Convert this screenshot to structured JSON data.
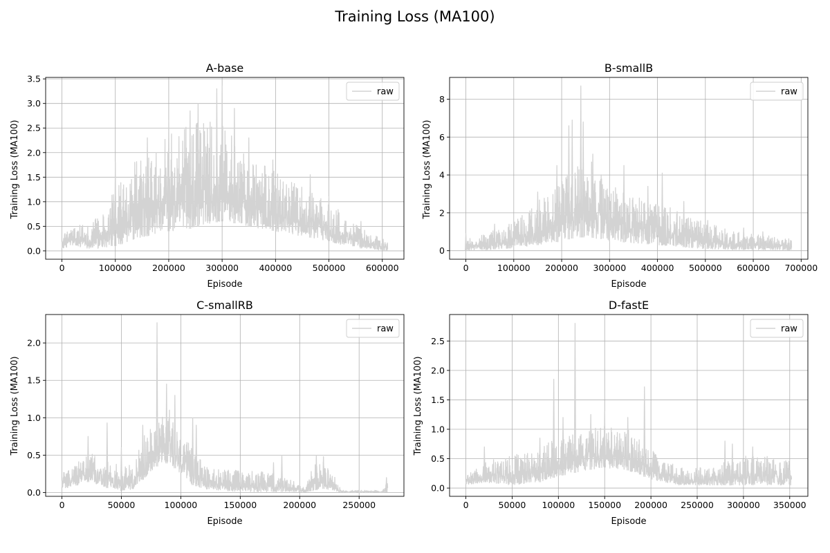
{
  "figure": {
    "title": "Training Loss (MA100)"
  },
  "style": {
    "raw_color": "#d3d3d3",
    "grid_color": "#b0b0b0",
    "axes_color": "#000000"
  },
  "chart_data": [
    {
      "type": "line",
      "title": "A-base",
      "xlabel": "Episode",
      "ylabel": "Training Loss (MA100)",
      "xlim": [
        -30500,
        640500
      ],
      "ylim": [
        -0.17,
        3.53
      ],
      "xticks": [
        0,
        100000,
        200000,
        300000,
        400000,
        500000,
        600000
      ],
      "xtick_labels": [
        "0",
        "100000",
        "200000",
        "300000",
        "400000",
        "500000",
        "600000"
      ],
      "yticks": [
        0.0,
        0.5,
        1.0,
        1.5,
        2.0,
        2.5,
        3.0,
        3.5
      ],
      "ytick_labels": [
        "0.0",
        "0.5",
        "1.0",
        "1.5",
        "2.0",
        "2.5",
        "3.0",
        "3.5"
      ],
      "grid": true,
      "legend": {
        "entries": [
          "raw"
        ],
        "placement": "upper right"
      },
      "series": [
        {
          "name": "raw",
          "x_end": 610000,
          "points": 1400,
          "envelope": {
            "x": [
              0,
              20000,
              50000,
              80000,
              100000,
              130000,
              160000,
              200000,
              240000,
              270000,
              300000,
              330000,
              370000,
              400000,
              450000,
              500000,
              530000,
              560000,
              590000,
              610000
            ],
            "low": [
              0.05,
              0.1,
              0.05,
              0.05,
              0.1,
              0.2,
              0.3,
              0.4,
              0.45,
              0.55,
              0.6,
              0.55,
              0.45,
              0.4,
              0.3,
              0.2,
              0.1,
              0.05,
              0.02,
              0.0
            ],
            "high": [
              0.3,
              0.5,
              0.55,
              0.8,
              1.3,
              1.75,
              2.05,
              2.35,
              2.6,
              2.75,
              2.65,
              2.2,
              1.85,
              1.6,
              1.3,
              1.05,
              0.75,
              0.5,
              0.3,
              0.2
            ]
          },
          "spikes": [
            [
              100000,
              1.8
            ],
            [
              160000,
              2.3
            ],
            [
              200000,
              2.65
            ],
            [
              240000,
              2.85
            ],
            [
              255000,
              3.0
            ],
            [
              290000,
              3.3
            ],
            [
              300000,
              3.35
            ],
            [
              323000,
              2.9
            ],
            [
              350000,
              2.3
            ],
            [
              395000,
              1.85
            ],
            [
              465000,
              1.55
            ],
            [
              500000,
              1.1
            ],
            [
              560000,
              0.6
            ]
          ]
        }
      ]
    },
    {
      "type": "line",
      "title": "B-smallB",
      "xlabel": "Episode",
      "ylabel": "Training Loss (MA100)",
      "xlim": [
        -34000,
        714000
      ],
      "ylim": [
        -0.45,
        9.15
      ],
      "xticks": [
        0,
        100000,
        200000,
        300000,
        400000,
        500000,
        600000,
        700000
      ],
      "xtick_labels": [
        "0",
        "100000",
        "200000",
        "300000",
        "400000",
        "500000",
        "600000",
        "700000"
      ],
      "yticks": [
        0,
        2,
        4,
        6,
        8
      ],
      "ytick_labels": [
        "0",
        "2",
        "4",
        "6",
        "8"
      ],
      "grid": true,
      "legend": {
        "entries": [
          "raw"
        ],
        "placement": "upper right"
      },
      "series": [
        {
          "name": "raw",
          "x_end": 680000,
          "points": 1500,
          "envelope": {
            "x": [
              0,
              50000,
              100000,
              150000,
              200000,
              230000,
              260000,
              300000,
              350000,
              400000,
              450000,
              500000,
              550000,
              600000,
              650000,
              680000
            ],
            "low": [
              0.0,
              0.05,
              0.15,
              0.3,
              0.5,
              0.7,
              0.7,
              0.5,
              0.4,
              0.3,
              0.2,
              0.1,
              0.05,
              0.05,
              0.05,
              0.0
            ],
            "high": [
              0.6,
              1.0,
              1.5,
              2.6,
              3.9,
              4.8,
              4.9,
              3.5,
              2.9,
              2.6,
              2.0,
              1.5,
              1.1,
              0.9,
              0.75,
              0.6
            ]
          },
          "spikes": [
            [
              0,
              0.9
            ],
            [
              60000,
              1.4
            ],
            [
              150000,
              3.1
            ],
            [
              190000,
              4.5
            ],
            [
              215000,
              6.6
            ],
            [
              222000,
              6.9
            ],
            [
              240000,
              8.7
            ],
            [
              245000,
              6.8
            ],
            [
              265000,
              5.1
            ],
            [
              330000,
              4.5
            ],
            [
              380000,
              3.4
            ],
            [
              410000,
              4.1
            ],
            [
              455000,
              2.6
            ],
            [
              505000,
              1.6
            ],
            [
              580000,
              1.2
            ],
            [
              620000,
              1.0
            ]
          ]
        }
      ]
    },
    {
      "type": "line",
      "title": "C-smallRB",
      "xlabel": "Episode",
      "ylabel": "Training Loss (MA100)",
      "xlim": [
        -13700,
        287700
      ],
      "ylim": [
        -0.05,
        2.38
      ],
      "xticks": [
        0,
        50000,
        100000,
        150000,
        200000,
        250000
      ],
      "xtick_labels": [
        "0",
        "50000",
        "100000",
        "150000",
        "200000",
        "250000"
      ],
      "yticks": [
        0.0,
        0.5,
        1.0,
        1.5,
        2.0
      ],
      "ytick_labels": [
        "0.0",
        "0.5",
        "1.0",
        "1.5",
        "2.0"
      ],
      "grid": true,
      "legend": {
        "entries": [
          "raw"
        ],
        "placement": "upper right"
      },
      "series": [
        {
          "name": "raw",
          "x_end": 274000,
          "points": 1300,
          "envelope": {
            "x": [
              0,
              10000,
              20000,
              30000,
              40000,
              50000,
              60000,
              70000,
              80000,
              90000,
              100000,
              110000,
              120000,
              140000,
              160000,
              180000,
              195000,
              205000,
              210000,
              220000,
              230000,
              235000,
              270000,
              274000
            ],
            "low": [
              0.05,
              0.08,
              0.15,
              0.1,
              0.05,
              0.02,
              0.05,
              0.2,
              0.35,
              0.4,
              0.25,
              0.1,
              0.05,
              0.02,
              0.01,
              0.01,
              0.01,
              0.0,
              0.02,
              0.05,
              0.02,
              0.0,
              0.0,
              0.0
            ],
            "high": [
              0.3,
              0.35,
              0.5,
              0.55,
              0.45,
              0.35,
              0.4,
              0.8,
              0.95,
              1.15,
              0.8,
              0.6,
              0.35,
              0.3,
              0.3,
              0.25,
              0.15,
              0.05,
              0.4,
              0.45,
              0.2,
              0.03,
              0.03,
              0.2
            ]
          },
          "spikes": [
            [
              22000,
              0.75
            ],
            [
              38000,
              0.93
            ],
            [
              50000,
              0.6
            ],
            [
              68000,
              0.9
            ],
            [
              80000,
              2.27
            ],
            [
              88000,
              1.45
            ],
            [
              95000,
              1.3
            ],
            [
              110000,
              1.0
            ],
            [
              113000,
              0.9
            ],
            [
              140000,
              0.3
            ],
            [
              178000,
              0.4
            ],
            [
              185000,
              0.5
            ],
            [
              214000,
              0.5
            ],
            [
              220000,
              0.48
            ],
            [
              273000,
              0.2
            ]
          ]
        }
      ]
    },
    {
      "type": "line",
      "title": "D-fastE",
      "xlabel": "Episode",
      "ylabel": "Training Loss (MA100)",
      "xlim": [
        -17600,
        369600
      ],
      "ylim": [
        -0.14,
        2.95
      ],
      "xticks": [
        0,
        50000,
        100000,
        150000,
        200000,
        250000,
        300000,
        350000
      ],
      "xtick_labels": [
        "0",
        "50000",
        "100000",
        "150000",
        "200000",
        "250000",
        "300000",
        "350000"
      ],
      "yticks": [
        0.0,
        0.5,
        1.0,
        1.5,
        2.0,
        2.5
      ],
      "ytick_labels": [
        "0.0",
        "0.5",
        "1.0",
        "1.5",
        "2.0",
        "2.5"
      ],
      "grid": true,
      "legend": {
        "entries": [
          "raw"
        ],
        "placement": "upper right"
      },
      "series": [
        {
          "name": "raw",
          "x_end": 352000,
          "points": 1400,
          "envelope": {
            "x": [
              0,
              20000,
              50000,
              80000,
              100000,
              130000,
              150000,
              175000,
              200000,
              230000,
              260000,
              280000,
              300000,
              330000,
              352000
            ],
            "low": [
              0.05,
              0.1,
              0.05,
              0.1,
              0.2,
              0.3,
              0.35,
              0.3,
              0.15,
              0.05,
              0.05,
              0.05,
              0.05,
              0.05,
              0.05
            ],
            "high": [
              0.2,
              0.5,
              0.55,
              0.7,
              0.85,
              1.0,
              1.05,
              1.0,
              0.65,
              0.35,
              0.35,
              0.45,
              0.55,
              0.55,
              0.45
            ]
          },
          "spikes": [
            [
              20000,
              0.7
            ],
            [
              80000,
              0.85
            ],
            [
              95000,
              1.85
            ],
            [
              105000,
              1.2
            ],
            [
              118000,
              2.8
            ],
            [
              135000,
              1.25
            ],
            [
              150000,
              1.3
            ],
            [
              175000,
              1.2
            ],
            [
              193000,
              1.72
            ],
            [
              280000,
              0.8
            ],
            [
              288000,
              0.75
            ],
            [
              310000,
              0.7
            ]
          ]
        }
      ]
    }
  ]
}
